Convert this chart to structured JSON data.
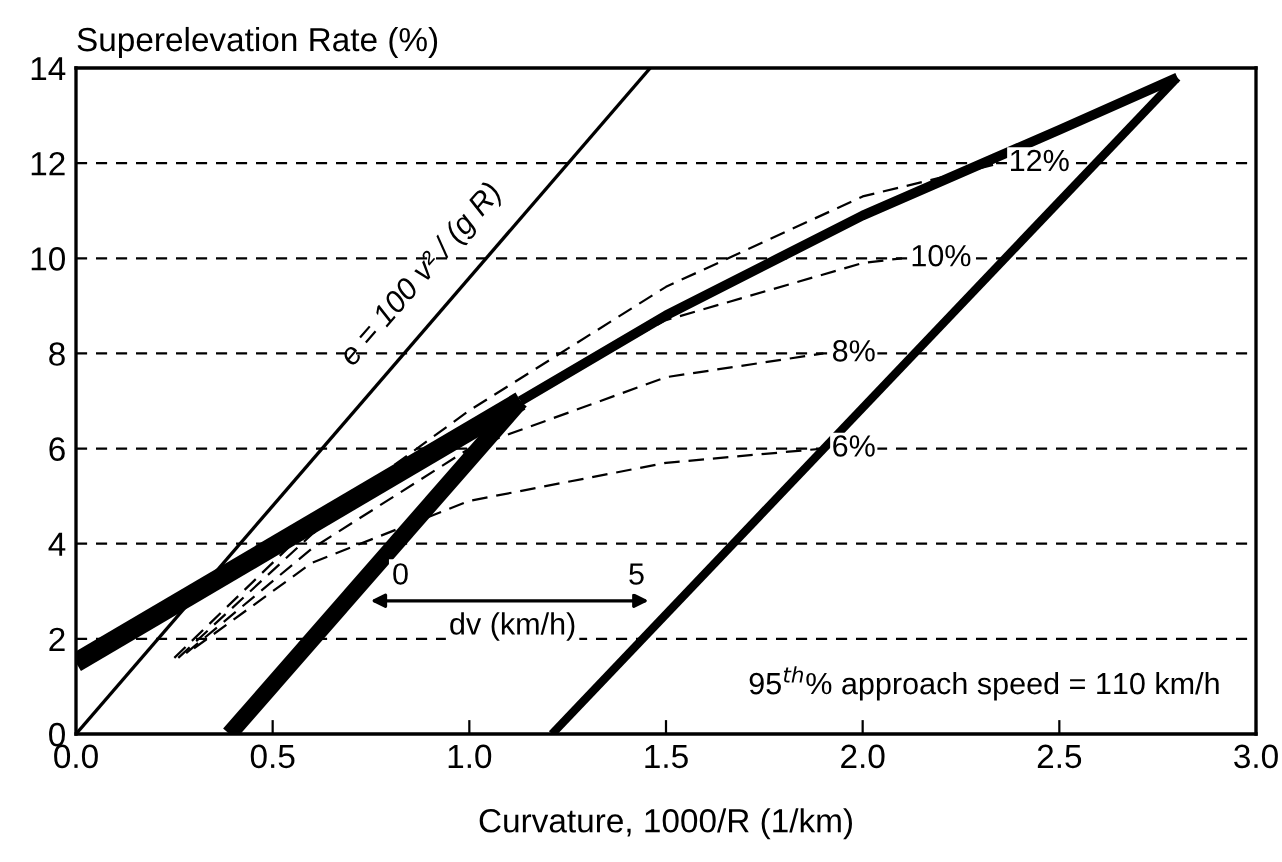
{
  "chart_data": {
    "type": "line",
    "xlabel": "Curvature, 1000/R (1/km)",
    "ylabel": "Superelevation Rate (%)",
    "xlim": [
      0,
      3
    ],
    "ylim": [
      0,
      14
    ],
    "xticks": [
      {
        "value": 0,
        "label": "0.0"
      },
      0.5,
      {
        "value": 1,
        "label": "1.0"
      },
      1.5,
      {
        "value": 2,
        "label": "2.0"
      },
      2.5,
      {
        "value": 3,
        "label": "3.0"
      }
    ],
    "yticks": [
      0,
      2,
      4,
      6,
      8,
      10,
      12,
      14
    ],
    "grid": "y",
    "marker": "none",
    "series": [
      {
        "name": "e = 100 v² / (g R)",
        "color": "#000000",
        "line_style": "solid",
        "x": [
          0,
          1.46
        ],
        "values": [
          0,
          14
        ]
      },
      {
        "color": "#000000",
        "line_style": "solid",
        "x": [
          0,
          1.13
        ],
        "values": [
          1.5,
          7.0
        ]
      },
      {
        "color": "#000000",
        "line_style": "solid",
        "x": [
          0.39,
          1.13
        ],
        "values": [
          0,
          7.0
        ]
      },
      {
        "color": "#000000",
        "line_style": "solid",
        "x": [
          1.13,
          1.5,
          2.0,
          2.5,
          2.8
        ],
        "values": [
          7.0,
          8.8,
          10.9,
          12.7,
          13.8
        ]
      },
      {
        "color": "#000000",
        "line_style": "solid",
        "x": [
          1.21,
          2.8
        ],
        "values": [
          0,
          13.8
        ]
      },
      {
        "name": "6%",
        "color": "#000000",
        "line_style": "dashed",
        "x": [
          0.3,
          0.6,
          1.0,
          1.5,
          1.9
        ],
        "values": [
          1.8,
          3.6,
          4.9,
          5.7,
          6.0
        ]
      },
      {
        "name": "8%",
        "color": "#000000",
        "line_style": "dashed",
        "x": [
          0.28,
          0.6,
          1.0,
          1.5,
          1.9
        ],
        "values": [
          1.7,
          3.9,
          6.0,
          7.5,
          8.0
        ]
      },
      {
        "name": "10%",
        "color": "#000000",
        "line_style": "dashed",
        "x": [
          0.26,
          0.6,
          1.0,
          1.5,
          2.0,
          2.1
        ],
        "values": [
          1.6,
          4.2,
          6.5,
          8.7,
          9.9,
          10.0
        ]
      },
      {
        "name": "12%",
        "color": "#000000",
        "line_style": "dashed",
        "x": [
          0.25,
          0.6,
          1.0,
          1.5,
          2.0,
          2.35
        ],
        "values": [
          1.6,
          4.4,
          6.8,
          9.4,
          11.3,
          12.0
        ]
      }
    ],
    "annotations": [
      "0",
      "5",
      "dv (km/h)",
      "95$^{th}$% approach speed = 110 km/h"
    ]
  }
}
